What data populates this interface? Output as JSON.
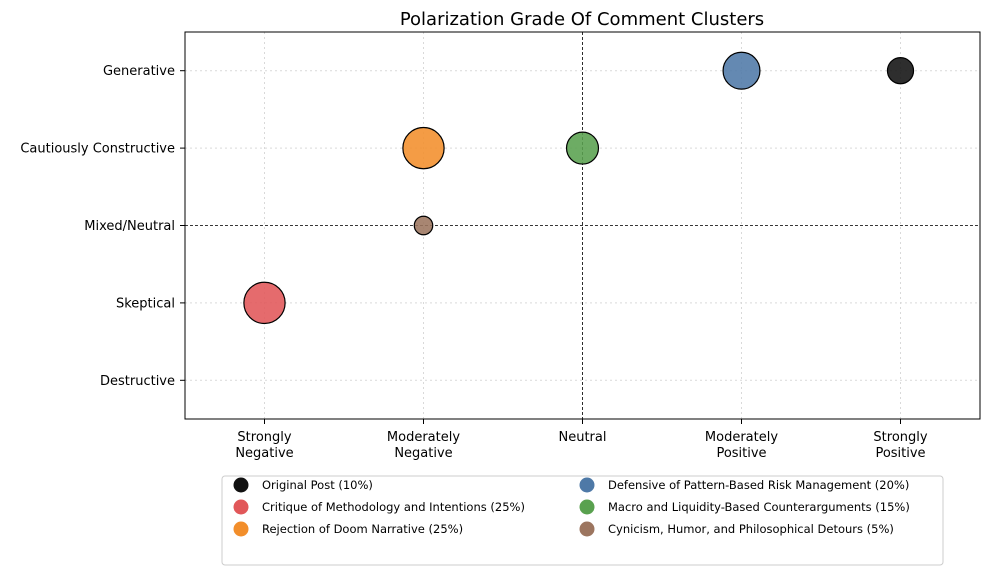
{
  "chart_data": {
    "type": "scatter",
    "title": "Polarization Grade Of Comment Clusters",
    "xlabel": "",
    "ylabel": "",
    "x_categories": [
      [
        "Strongly",
        "Negative"
      ],
      [
        "Moderately",
        "Negative"
      ],
      [
        "Neutral"
      ],
      [
        "Moderately",
        "Positive"
      ],
      [
        "Strongly",
        "Positive"
      ]
    ],
    "y_categories": [
      "Destructive",
      "Skeptical",
      "Mixed/Neutral",
      "Cautiously Constructive",
      "Generative"
    ],
    "xlim": [
      -0.5,
      4.5
    ],
    "ylim": [
      -0.5,
      4.5
    ],
    "grid": true,
    "reference_lines": {
      "x": 2,
      "y": 2
    },
    "legend_position": "bottom",
    "series": [
      {
        "name": "Original Post (10%)",
        "share": 10,
        "x": 4,
        "y": 4,
        "color": "#111111"
      },
      {
        "name": "Critique of Methodology and Intentions (25%)",
        "share": 25,
        "x": 0,
        "y": 1,
        "color": "#e15759"
      },
      {
        "name": "Rejection of Doom Narrative (25%)",
        "share": 25,
        "x": 1,
        "y": 3,
        "color": "#f28e2b"
      },
      {
        "name": "Defensive of Pattern-Based Risk Management (20%)",
        "share": 20,
        "x": 3,
        "y": 4,
        "color": "#4e79a7"
      },
      {
        "name": "Macro and Liquidity-Based Counterarguments (15%)",
        "share": 15,
        "x": 2,
        "y": 3,
        "color": "#59a14f"
      },
      {
        "name": "Cynicism, Humor, and Philosophical Detours (5%)",
        "share": 5,
        "x": 1,
        "y": 2,
        "color": "#9c755f"
      }
    ]
  }
}
